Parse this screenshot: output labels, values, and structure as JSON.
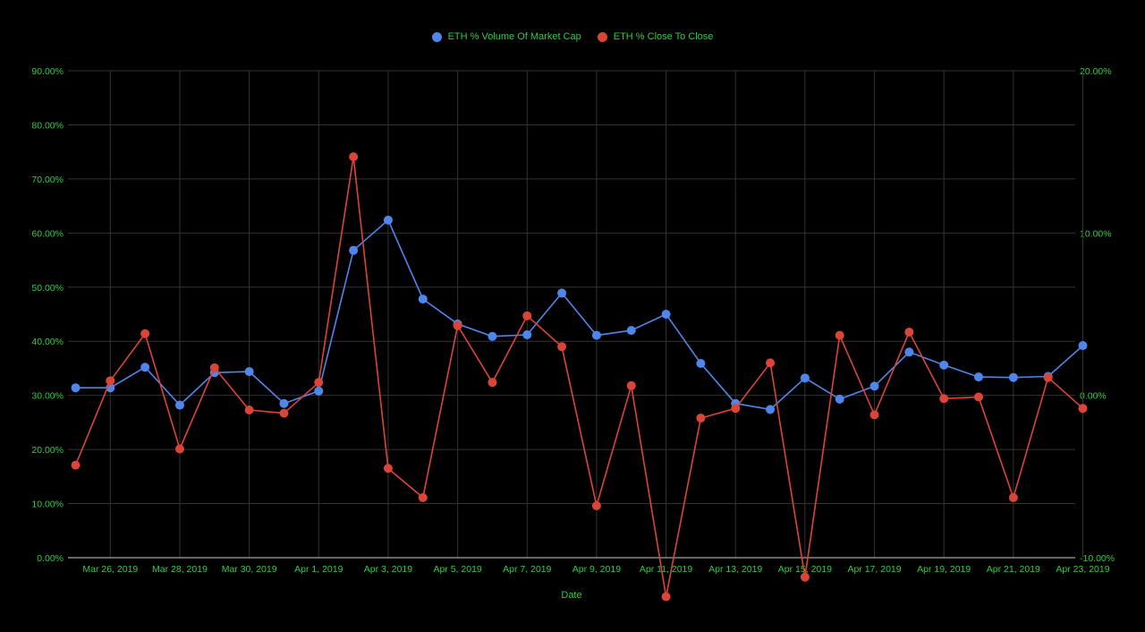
{
  "colors": {
    "background": "#000000",
    "text": "#2ecc40",
    "grid": "#333333",
    "axis": "#cccccc",
    "series_blue": "#4f86ec",
    "series_red": "#db4437"
  },
  "chart_data": {
    "type": "line",
    "title": "",
    "xlabel": "Date",
    "ylabel": "",
    "legend_position": "top",
    "grid": true,
    "x": [
      "2019-03-25",
      "2019-03-26",
      "2019-03-27",
      "2019-03-28",
      "2019-03-29",
      "2019-03-30",
      "2019-03-31",
      "2019-04-01",
      "2019-04-02",
      "2019-04-03",
      "2019-04-04",
      "2019-04-05",
      "2019-04-06",
      "2019-04-07",
      "2019-04-08",
      "2019-04-09",
      "2019-04-10",
      "2019-04-11",
      "2019-04-12",
      "2019-04-13",
      "2019-04-14",
      "2019-04-15",
      "2019-04-16",
      "2019-04-17",
      "2019-04-18",
      "2019-04-19",
      "2019-04-20",
      "2019-04-21",
      "2019-04-22",
      "2019-04-23"
    ],
    "x_tick_labels": [
      "Mar 26, 2019",
      "Mar 28, 2019",
      "Mar 30, 2019",
      "Apr 1, 2019",
      "Apr 3, 2019",
      "Apr 5, 2019",
      "Apr 7, 2019",
      "Apr 9, 2019",
      "Apr 11, 2019",
      "Apr 13, 2019",
      "Apr 15, 2019",
      "Apr 17, 2019",
      "Apr 19, 2019",
      "Apr 21, 2019",
      "Apr 23, 2019"
    ],
    "y_left": {
      "ylim": [
        0,
        90
      ],
      "ticks": [
        "0.00%",
        "10.00%",
        "20.00%",
        "30.00%",
        "40.00%",
        "50.00%",
        "60.00%",
        "70.00%",
        "80.00%",
        "90.00%"
      ]
    },
    "y_right": {
      "ylim": [
        -10,
        20
      ],
      "ticks": [
        "-10.00%",
        "0.00%",
        "10.00%",
        "20.00%"
      ]
    },
    "series": [
      {
        "name": "ETH % Volume Of Market Cap",
        "axis": "left",
        "color": "#4f86ec",
        "values": [
          31.4,
          31.4,
          35.2,
          28.2,
          34.2,
          34.4,
          28.5,
          30.8,
          56.8,
          62.4,
          47.8,
          43.2,
          40.9,
          41.2,
          48.9,
          41.1,
          42.0,
          45.0,
          35.9,
          28.5,
          27.4,
          33.2,
          29.3,
          31.7,
          38.0,
          35.6,
          33.4,
          33.3,
          33.5,
          39.2
        ]
      },
      {
        "name": "ETH % Close To Close",
        "axis": "right",
        "color": "#db4437",
        "values": [
          -4.3,
          0.9,
          3.8,
          -3.3,
          1.7,
          -0.9,
          -1.1,
          0.8,
          14.7,
          -4.5,
          -6.3,
          4.3,
          0.8,
          4.9,
          3.0,
          -6.8,
          0.6,
          -12.4,
          -1.4,
          -0.8,
          2.0,
          -11.2,
          3.7,
          -1.2,
          3.9,
          -0.2,
          -0.1,
          -6.3,
          1.1,
          -0.8
        ]
      }
    ]
  }
}
